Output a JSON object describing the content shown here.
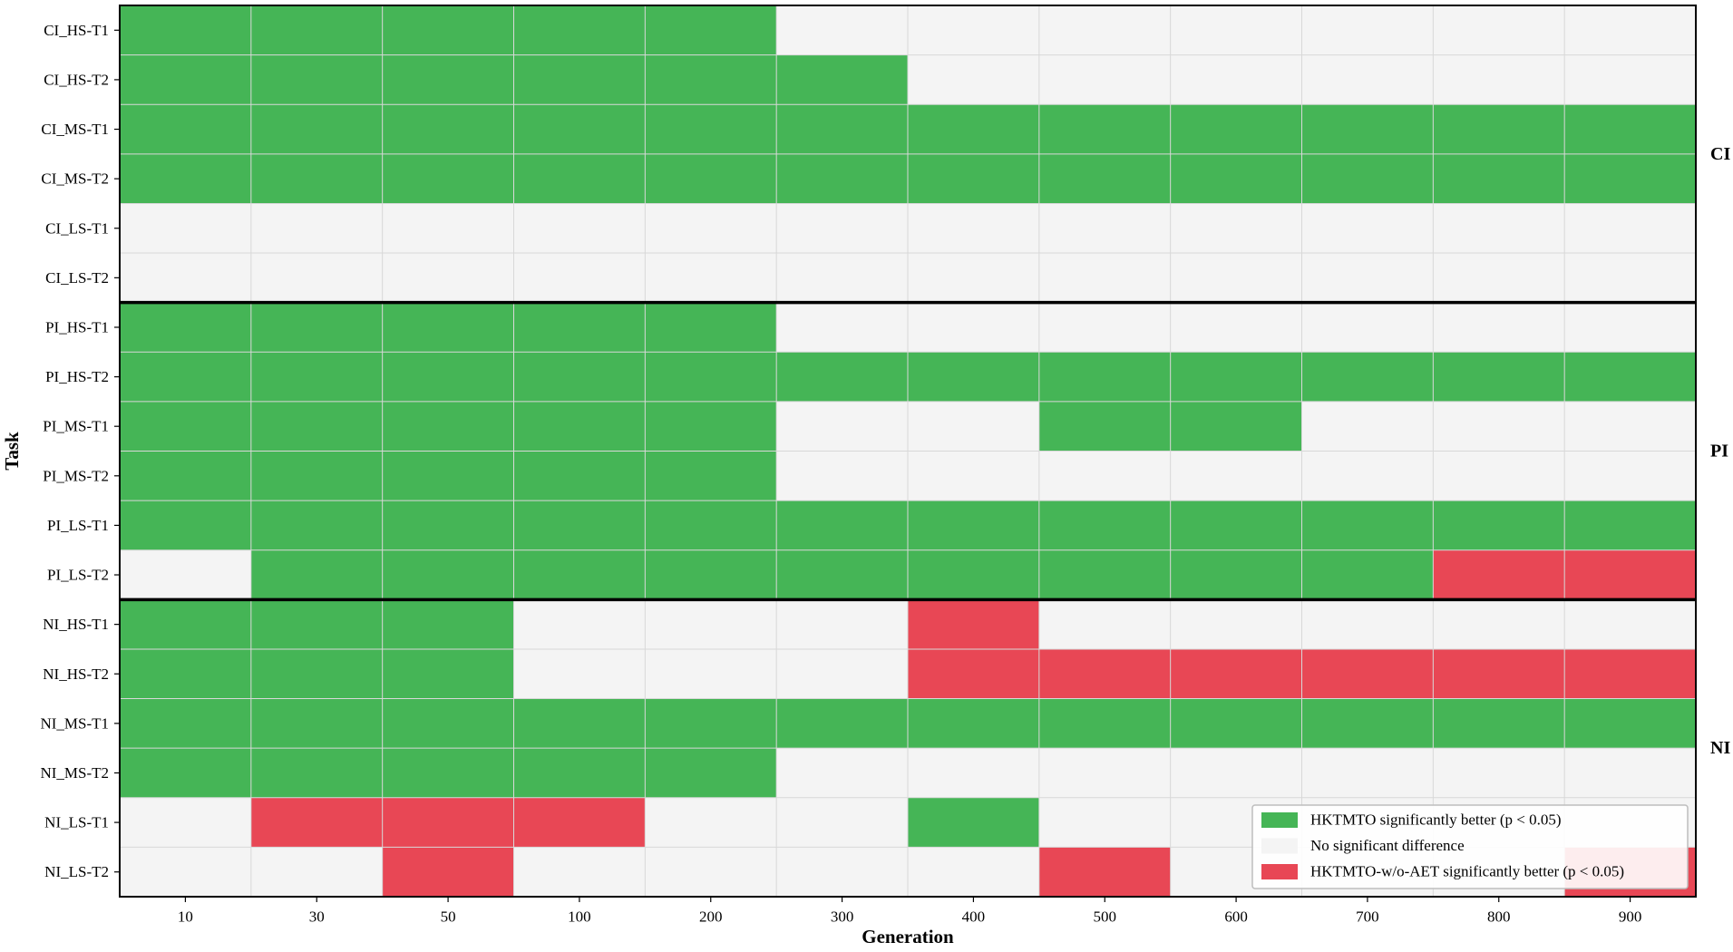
{
  "chart_data": {
    "type": "heatmap",
    "xlabel": "Generation",
    "ylabel": "Task",
    "x_ticks": [
      "10",
      "30",
      "50",
      "100",
      "200",
      "300",
      "400",
      "500",
      "600",
      "700",
      "800",
      "900"
    ],
    "tasks": [
      "CI_HS-T1",
      "CI_HS-T2",
      "CI_MS-T1",
      "CI_MS-T2",
      "CI_LS-T1",
      "CI_LS-T2",
      "PI_HS-T1",
      "PI_HS-T2",
      "PI_MS-T1",
      "PI_MS-T2",
      "PI_LS-T1",
      "PI_LS-T2",
      "NI_HS-T1",
      "NI_HS-T2",
      "NI_MS-T1",
      "NI_MS-T2",
      "NI_LS-T1",
      "NI_LS-T2"
    ],
    "groups": [
      {
        "label": "CI",
        "rows": [
          0,
          5
        ]
      },
      {
        "label": "PI",
        "rows": [
          6,
          11
        ]
      },
      {
        "label": "NI",
        "rows": [
          12,
          17
        ]
      }
    ],
    "value_legend": {
      "1": "HKTMTO significantly better",
      "0": "No significant difference",
      "-1": "HKTMTO-w/o-AET significantly better"
    },
    "values": [
      [
        1,
        1,
        1,
        1,
        1,
        0,
        0,
        0,
        0,
        0,
        0,
        0
      ],
      [
        1,
        1,
        1,
        1,
        1,
        1,
        0,
        0,
        0,
        0,
        0,
        0
      ],
      [
        1,
        1,
        1,
        1,
        1,
        1,
        1,
        1,
        1,
        1,
        1,
        1
      ],
      [
        1,
        1,
        1,
        1,
        1,
        1,
        1,
        1,
        1,
        1,
        1,
        1
      ],
      [
        0,
        0,
        0,
        0,
        0,
        0,
        0,
        0,
        0,
        0,
        0,
        0
      ],
      [
        0,
        0,
        0,
        0,
        0,
        0,
        0,
        0,
        0,
        0,
        0,
        0
      ],
      [
        1,
        1,
        1,
        1,
        1,
        0,
        0,
        0,
        0,
        0,
        0,
        0
      ],
      [
        1,
        1,
        1,
        1,
        1,
        1,
        1,
        1,
        1,
        1,
        1,
        1
      ],
      [
        1,
        1,
        1,
        1,
        1,
        0,
        0,
        1,
        1,
        0,
        0,
        0
      ],
      [
        1,
        1,
        1,
        1,
        1,
        0,
        0,
        0,
        0,
        0,
        0,
        0
      ],
      [
        1,
        1,
        1,
        1,
        1,
        1,
        1,
        1,
        1,
        1,
        1,
        1
      ],
      [
        0,
        1,
        1,
        1,
        1,
        1,
        1,
        1,
        1,
        1,
        -1,
        -1
      ],
      [
        1,
        1,
        1,
        0,
        0,
        0,
        -1,
        0,
        0,
        0,
        0,
        0
      ],
      [
        1,
        1,
        1,
        0,
        0,
        0,
        -1,
        -1,
        -1,
        -1,
        -1,
        -1
      ],
      [
        1,
        1,
        1,
        1,
        1,
        1,
        1,
        1,
        1,
        1,
        1,
        1
      ],
      [
        1,
        1,
        1,
        1,
        1,
        0,
        0,
        0,
        0,
        0,
        0,
        0
      ],
      [
        0,
        -1,
        -1,
        -1,
        0,
        0,
        1,
        0,
        0,
        0,
        0,
        0
      ],
      [
        0,
        0,
        -1,
        0,
        0,
        0,
        0,
        -1,
        0,
        0,
        0,
        -1
      ]
    ],
    "legend": {
      "position": "lower right",
      "entries": [
        {
          "label": "HKTMTO significantly better (p < 0.05)",
          "color": "#45B556"
        },
        {
          "label": "No significant difference",
          "color": "#F4F4F4"
        },
        {
          "label": "HKTMTO-w/o-AET significantly better (p < 0.05)",
          "color": "#E84755"
        }
      ]
    },
    "colors": {
      "better": "#45B556",
      "none": "#F4F4F4",
      "worse": "#E84755",
      "grid": "#D8D8D8",
      "separator": "#000000"
    },
    "grid": true
  }
}
